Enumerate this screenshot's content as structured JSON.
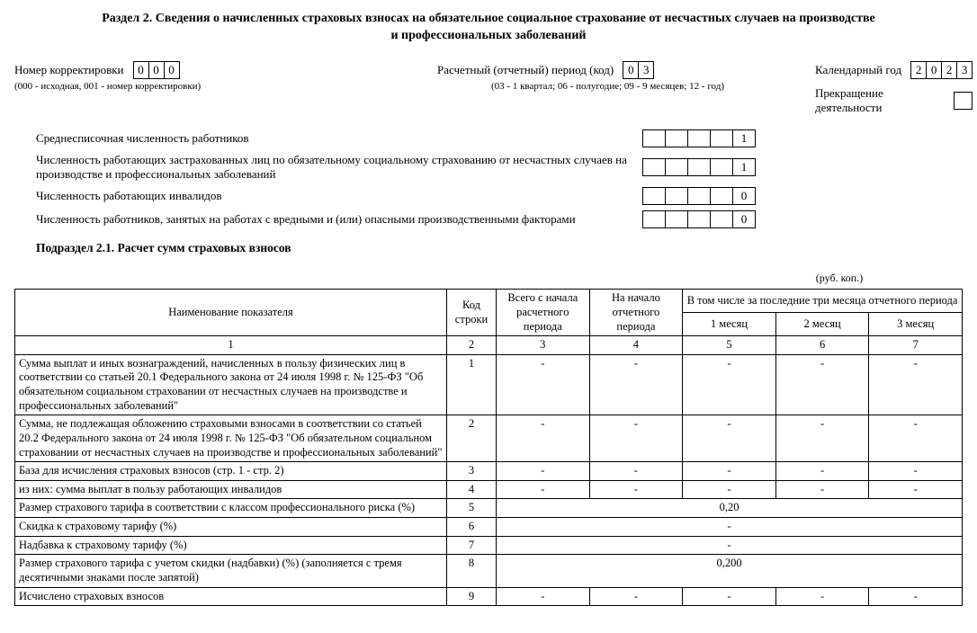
{
  "title_l1": "Раздел 2. Сведения о начисленных страховых взносах на обязательное социальное страхование от несчастных случаев на производстве",
  "title_l2": "и профессиональных заболеваний",
  "meta": {
    "corr_label": "Номер корректировки",
    "corr_cells": [
      "0",
      "0",
      "0"
    ],
    "corr_hint": "(000 - исходная, 001 - номер корректировки)",
    "period_label": "Расчетный (отчетный) период (код)",
    "period_cells": [
      "0",
      "3"
    ],
    "period_hint": "(03 - 1 квартал; 06 - полугодие; 09 - 9 месяцев; 12 - год)",
    "year_label": "Календарный год",
    "year_cells": [
      "2",
      "0",
      "2",
      "3"
    ],
    "term_label": "Прекращение деятельности",
    "term_value": ""
  },
  "counts": [
    {
      "label": "Среднесписочная численность работников",
      "cells": [
        "",
        "",
        "",
        "",
        "1"
      ]
    },
    {
      "label": "Численность работающих застрахованных лиц по обязательному социальному страхованию от несчастных случаев на производстве и профессиональных заболеваний",
      "cells": [
        "",
        "",
        "",
        "",
        "1"
      ]
    },
    {
      "label": "Численность работающих инвалидов",
      "cells": [
        "",
        "",
        "",
        "",
        "0"
      ]
    },
    {
      "label": "Численность работников, занятых на работах с вредными и (или) опасными производственными факторами",
      "cells": [
        "",
        "",
        "",
        "",
        "0"
      ]
    }
  ],
  "sub_title": "Подраздел 2.1. Расчет сумм страховых взносов",
  "unit": "(руб. коп.)",
  "head": {
    "name": "Наименование показателя",
    "code": "Код строки",
    "total": "Всего с начала расчетного периода",
    "start": "На начало отчетного периода",
    "last3": "В том числе за последние три месяца отчетного периода",
    "m1": "1 месяц",
    "m2": "2 месяц",
    "m3": "3 месяц"
  },
  "numrow": [
    "1",
    "2",
    "3",
    "4",
    "5",
    "6",
    "7"
  ],
  "rows": [
    {
      "name": "Сумма выплат и иных вознаграждений, начисленных в пользу физических лиц в соответствии со статьей 20.1 Федерального закона от 24 июля 1998 г. № 125-ФЗ \"Об обязательном социальном страховании от несчастных случаев на производстве и профессиональных заболеваний\"",
      "code": "1",
      "v": [
        "-",
        "-",
        "-",
        "-",
        "-"
      ],
      "span": 0
    },
    {
      "name": "Сумма, не подлежащая обложению страховыми взносами в соответствии со статьей 20.2 Федерального закона от 24 июля 1998 г. № 125-ФЗ \"Об обязательном социальном страховании от несчастных случаев на производстве и профессиональных заболеваний\"",
      "code": "2",
      "v": [
        "-",
        "-",
        "-",
        "-",
        "-"
      ],
      "span": 0
    },
    {
      "name": "База для исчисления страховых взносов (стр. 1 - стр. 2)",
      "code": "3",
      "v": [
        "-",
        "-",
        "-",
        "-",
        "-"
      ],
      "span": 0
    },
    {
      "name": "из них: сумма выплат в пользу работающих инвалидов",
      "code": "4",
      "v": [
        "-",
        "-",
        "-",
        "-",
        "-"
      ],
      "span": 0
    },
    {
      "name": "Размер страхового тарифа в соответствии с классом профессионального риска (%)",
      "code": "5",
      "v": [
        "0,20"
      ],
      "span": 5
    },
    {
      "name": "Скидка к страховому тарифу (%)",
      "code": "6",
      "v": [
        "-"
      ],
      "span": 5
    },
    {
      "name": "Надбавка к страховому тарифу (%)",
      "code": "7",
      "v": [
        "-"
      ],
      "span": 5
    },
    {
      "name": "Размер страхового тарифа с учетом скидки (надбавки) (%) (заполняется с тремя десятичными знаками после запятой)",
      "code": "8",
      "v": [
        "0,200"
      ],
      "span": 5
    },
    {
      "name": "Исчислено страховых взносов",
      "code": "9",
      "v": [
        "-",
        "-",
        "-",
        "-",
        "-"
      ],
      "span": 0
    }
  ]
}
